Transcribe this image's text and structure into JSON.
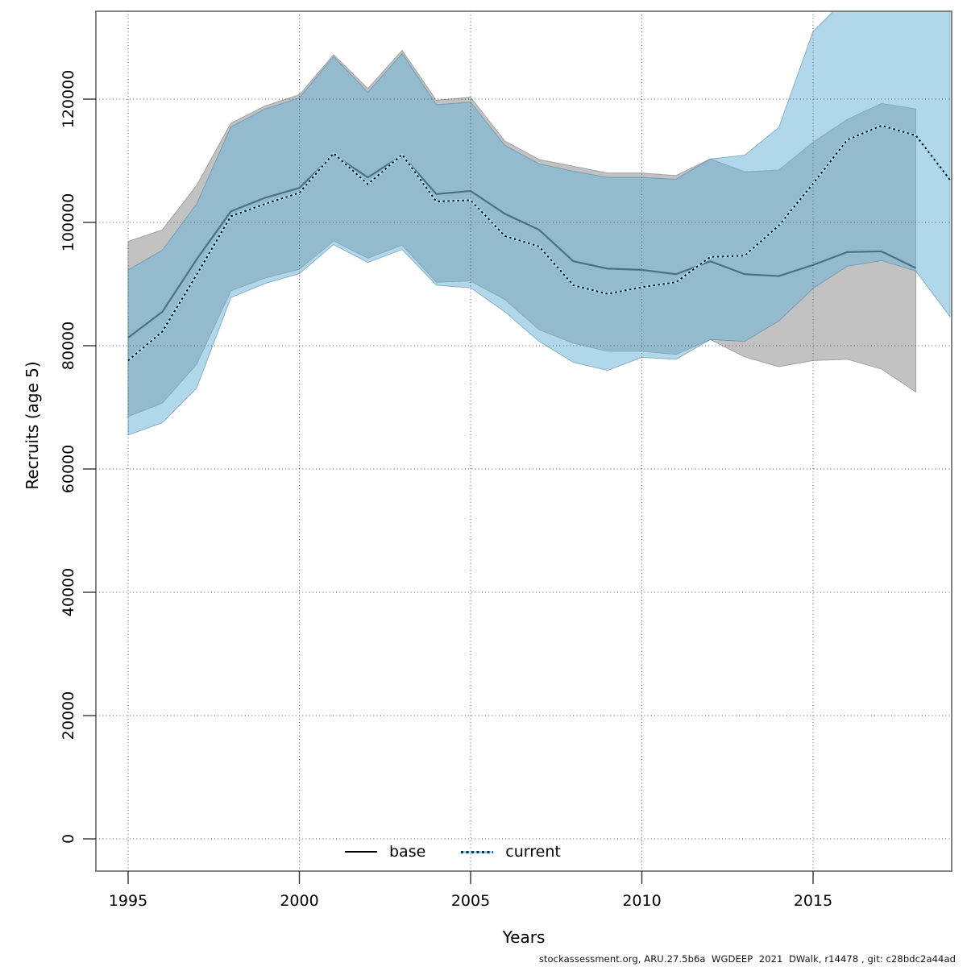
{
  "chart_data": {
    "type": "line",
    "title": "",
    "xlabel": "Years",
    "ylabel": "Recruits (age 5)",
    "x_ticks": [
      1995,
      2000,
      2005,
      2010,
      2015
    ],
    "y_ticks": [
      0,
      20000,
      40000,
      60000,
      80000,
      100000,
      120000
    ],
    "xlim": [
      1994.06,
      2019.05
    ],
    "ylim": [
      -5200,
      134300
    ],
    "grid": true,
    "legend_position": "bottom-center",
    "footer": "stockassessment.org, ARU.27.5b6a  WGDEEP  2021  DWalk, r14478 , git: c28bdc2a44ad",
    "colors": {
      "base_band": "#c2c2c2",
      "base_band_edge": "#a2a2a2",
      "base_line": "#2a2a2a",
      "current_band": "rgba(105,180,215,0.52)",
      "current_band_edge": "rgba(80,130,160,0.55)",
      "current_line": "#0d0d0d",
      "current_line_casing": "#9ed7f2",
      "grid": "#555555",
      "border": "#666666",
      "tick": "#333333"
    },
    "series": [
      {
        "name": "base",
        "style": "solid",
        "x": [
          1995,
          1996,
          1997,
          1998,
          1999,
          2000,
          2001,
          2002,
          2003,
          2004,
          2005,
          2006,
          2007,
          2008,
          2009,
          2010,
          2011,
          2012,
          2013,
          2014,
          2015,
          2016,
          2017,
          2018
        ],
        "values": [
          81300,
          85500,
          94000,
          101800,
          104000,
          105600,
          111000,
          107300,
          110900,
          104600,
          105100,
          101400,
          98800,
          93700,
          92500,
          92300,
          91600,
          93700,
          91600,
          91300,
          93100,
          95200,
          95300,
          92600
        ],
        "upper": [
          96900,
          98800,
          106000,
          116100,
          118900,
          120700,
          127200,
          121700,
          127900,
          119800,
          120300,
          113200,
          110200,
          109100,
          108000,
          108000,
          107600,
          110300,
          108200,
          108500,
          113000,
          116700,
          119300,
          118400
        ],
        "lower": [
          68500,
          70700,
          77000,
          88900,
          91000,
          92400,
          97000,
          94200,
          96300,
          90300,
          90500,
          87500,
          82600,
          80400,
          79100,
          79100,
          78600,
          81000,
          78200,
          76600,
          77600,
          77800,
          76200,
          72500
        ]
      },
      {
        "name": "current",
        "style": "dotted",
        "x": [
          1995,
          1996,
          1997,
          1998,
          1999,
          2000,
          2001,
          2002,
          2003,
          2004,
          2005,
          2006,
          2007,
          2008,
          2009,
          2010,
          2011,
          2012,
          2013,
          2014,
          2015,
          2016,
          2017,
          2018,
          2019
        ],
        "values": [
          77600,
          82300,
          91500,
          101000,
          103000,
          104800,
          111200,
          106200,
          111000,
          103400,
          103600,
          97800,
          96100,
          89800,
          88400,
          89500,
          90300,
          94400,
          94600,
          99500,
          106300,
          113400,
          115700,
          114100,
          106900
        ],
        "upper": [
          92300,
          95500,
          103000,
          115500,
          118400,
          120200,
          126900,
          121100,
          127400,
          119100,
          119500,
          112500,
          109500,
          108300,
          107300,
          107300,
          107000,
          110300,
          110900,
          115400,
          131000,
          136500,
          137500,
          137000,
          136500
        ],
        "lower": [
          65500,
          67500,
          73100,
          87800,
          90100,
          91700,
          96400,
          93500,
          95600,
          89800,
          89400,
          85500,
          80700,
          77300,
          76000,
          78100,
          77800,
          81000,
          80700,
          84000,
          89300,
          92900,
          93800,
          92100,
          84700
        ]
      }
    ]
  }
}
